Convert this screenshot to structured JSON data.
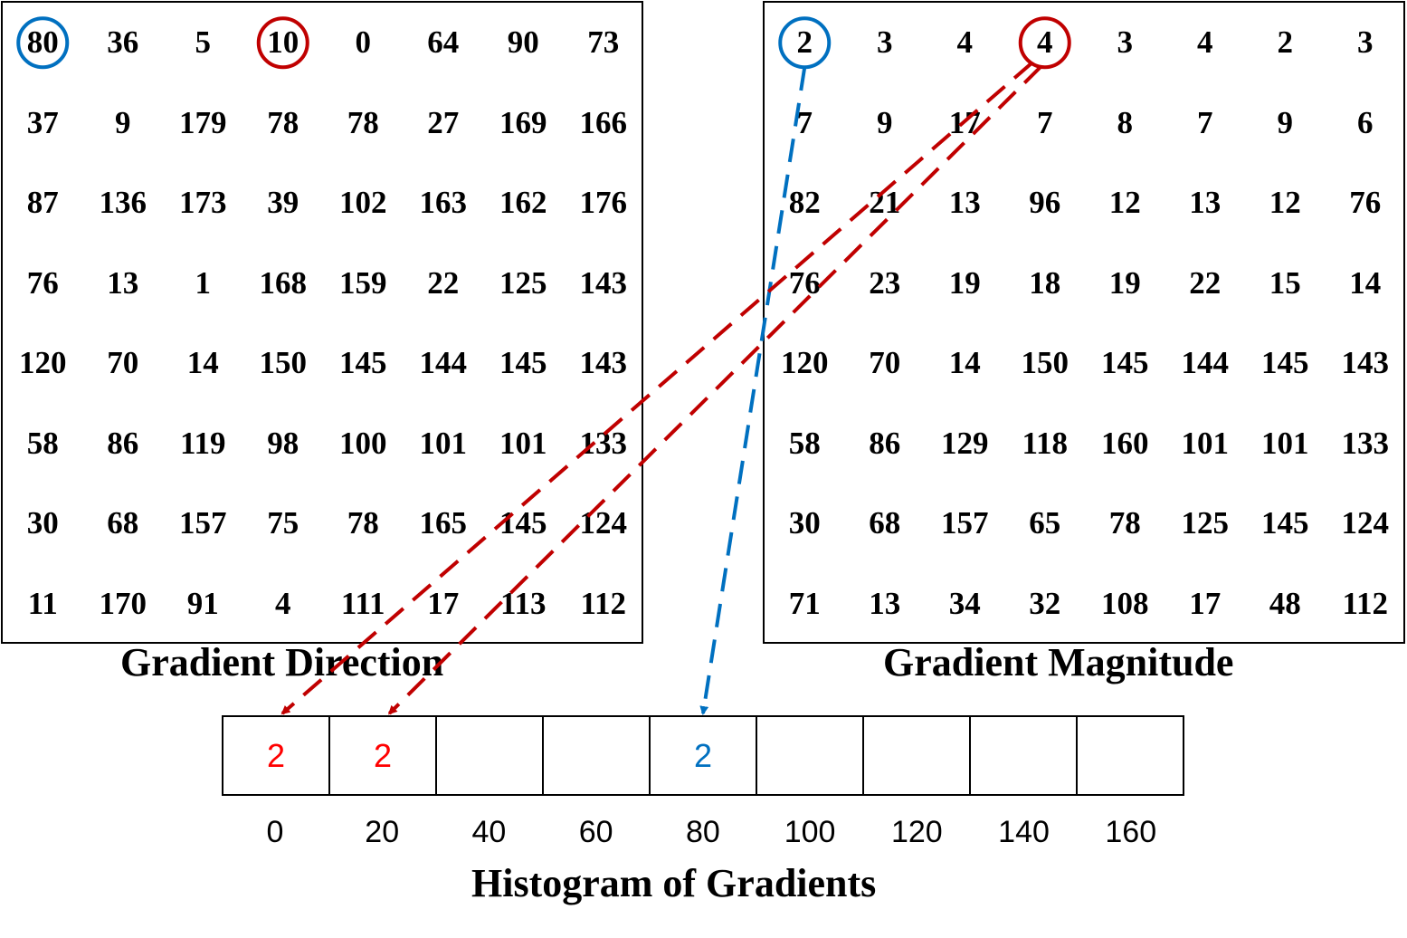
{
  "gradient_direction": {
    "title": "Gradient Direction",
    "rows": [
      [
        "80",
        "36",
        "5",
        "10",
        "0",
        "64",
        "90",
        "73"
      ],
      [
        "37",
        "9",
        "179",
        "78",
        "78",
        "27",
        "169",
        "166"
      ],
      [
        "87",
        "136",
        "173",
        "39",
        "102",
        "163",
        "162",
        "176"
      ],
      [
        "76",
        "13",
        "1",
        "168",
        "159",
        "22",
        "125",
        "143"
      ],
      [
        "120",
        "70",
        "14",
        "150",
        "145",
        "144",
        "145",
        "143"
      ],
      [
        "58",
        "86",
        "119",
        "98",
        "100",
        "101",
        "101",
        "133"
      ],
      [
        "30",
        "68",
        "157",
        "75",
        "78",
        "165",
        "145",
        "124"
      ],
      [
        "11",
        "170",
        "91",
        "4",
        "111",
        "17",
        "113",
        "112"
      ]
    ]
  },
  "gradient_magnitude": {
    "title": "Gradient Magnitude",
    "rows": [
      [
        "2",
        "3",
        "4",
        "4",
        "3",
        "4",
        "2",
        "3"
      ],
      [
        "7",
        "9",
        "17",
        "7",
        "8",
        "7",
        "9",
        "6"
      ],
      [
        "82",
        "21",
        "13",
        "96",
        "12",
        "13",
        "12",
        "76"
      ],
      [
        "76",
        "23",
        "19",
        "18",
        "19",
        "22",
        "15",
        "14"
      ],
      [
        "120",
        "70",
        "14",
        "150",
        "145",
        "144",
        "145",
        "143"
      ],
      [
        "58",
        "86",
        "129",
        "118",
        "160",
        "101",
        "101",
        "133"
      ],
      [
        "30",
        "68",
        "157",
        "65",
        "78",
        "125",
        "145",
        "124"
      ],
      [
        "71",
        "13",
        "34",
        "32",
        "108",
        "17",
        "48",
        "112"
      ]
    ]
  },
  "histogram": {
    "title": "Histogram of Gradients",
    "bins": [
      {
        "label": "0",
        "value": "2",
        "color": "#ff0000"
      },
      {
        "label": "20",
        "value": "2",
        "color": "#ff0000"
      },
      {
        "label": "40",
        "value": "",
        "color": "#000000"
      },
      {
        "label": "60",
        "value": "",
        "color": "#000000"
      },
      {
        "label": "80",
        "value": "2",
        "color": "#0070c0"
      },
      {
        "label": "100",
        "value": "",
        "color": "#000000"
      },
      {
        "label": "120",
        "value": "",
        "color": "#000000"
      },
      {
        "label": "140",
        "value": "",
        "color": "#000000"
      },
      {
        "label": "160",
        "value": "",
        "color": "#000000"
      }
    ]
  },
  "highlights": {
    "blue": {
      "color": "#0070c0",
      "row": 0,
      "col": 0,
      "target_bin": 4
    },
    "red": {
      "color": "#c00000",
      "row": 0,
      "col": 3,
      "target_bins": [
        0,
        1
      ]
    }
  }
}
